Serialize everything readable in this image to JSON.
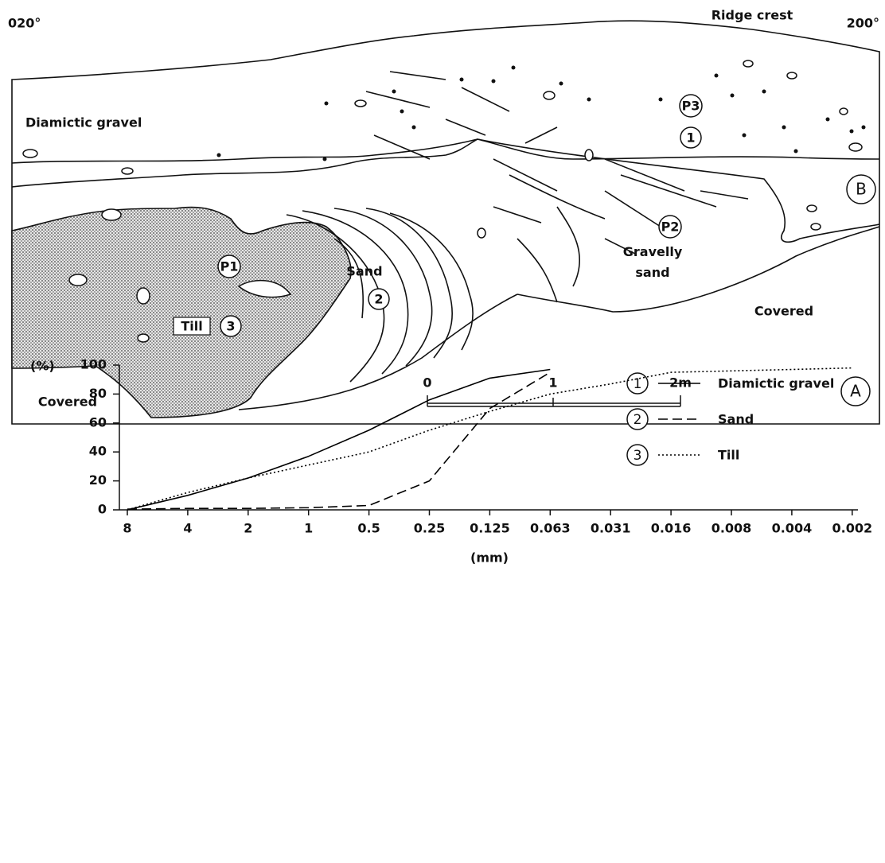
{
  "diagram": {
    "panel_label": "A",
    "bearing_left": "020°",
    "bearing_right": "200°",
    "ridge_crest": "Ridge crest",
    "units": {
      "diamictic_gravel": "Diamictic gravel",
      "gravelly_sand": "Gravelly sand",
      "sand": "Sand",
      "till": "Till",
      "covered_left": "Covered",
      "covered_right": "Covered"
    },
    "profiles": [
      "P1",
      "P2",
      "P3"
    ],
    "samples": [
      "1",
      "2",
      "3"
    ],
    "scale_bar": [
      "0",
      "1",
      "2m"
    ]
  },
  "chart_data": {
    "type": "line",
    "panel_label": "B",
    "y_label": "(%)",
    "x_label": "(mm)",
    "categories": [
      "8",
      "4",
      "2",
      "1",
      "0.5",
      "0.25",
      "0.125",
      "0.063",
      "0.031",
      "0.016",
      "0.008",
      "0.004",
      "0.002"
    ],
    "ylim": [
      0,
      100
    ],
    "yticks": [
      0,
      20,
      40,
      60,
      80,
      100
    ],
    "series": [
      {
        "name": "Diamictic gravel",
        "label": "1",
        "color": "#000000",
        "dash": "solid",
        "values": [
          0,
          10,
          22,
          37,
          55,
          76,
          91,
          97,
          null,
          null,
          null,
          null,
          null
        ]
      },
      {
        "name": "Sand",
        "label": "2",
        "color": "#000000",
        "dash": "dashed",
        "values": [
          0.5,
          1,
          1,
          1.5,
          3,
          20,
          70,
          95,
          null,
          null,
          null,
          null,
          null
        ]
      },
      {
        "name": "Till",
        "label": "3",
        "color": "#000000",
        "dash": "dotted",
        "values": [
          0,
          12,
          22,
          31,
          40,
          55,
          68,
          80,
          87,
          95,
          96,
          97,
          98
        ]
      }
    ]
  }
}
